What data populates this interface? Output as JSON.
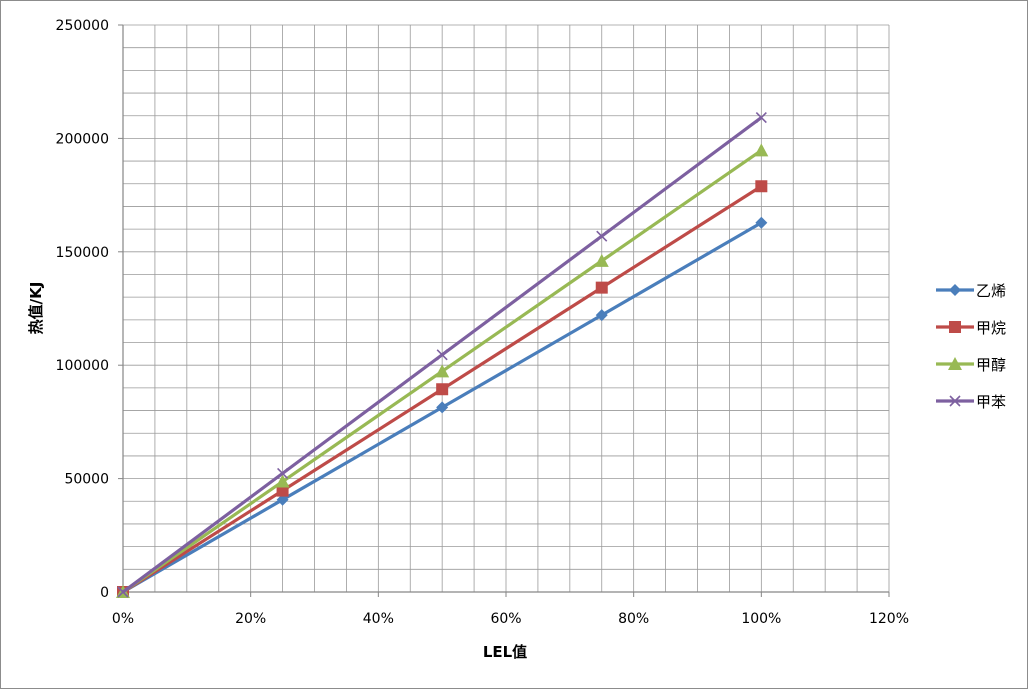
{
  "chart_data": {
    "type": "line",
    "title": "",
    "xlabel": "LEL值",
    "ylabel": "热值/KJ",
    "x": [
      0,
      0.25,
      0.5,
      0.75,
      1.0
    ],
    "xlim": [
      0,
      1.2
    ],
    "ylim": [
      0,
      250000
    ],
    "x_ticks": [
      0,
      0.2,
      0.4,
      0.6,
      0.8,
      1.0,
      1.2
    ],
    "x_tick_labels": [
      "0%",
      "20%",
      "40%",
      "60%",
      "80%",
      "100%",
      "120%"
    ],
    "y_ticks": [
      0,
      50000,
      100000,
      150000,
      200000,
      250000
    ],
    "y_tick_labels": [
      "0",
      "50000",
      "100000",
      "150000",
      "200000",
      "250000"
    ],
    "grid": true,
    "legend_position": "right",
    "series": [
      {
        "name": "乙烯",
        "color": "#4a7ebb",
        "marker": "diamond",
        "values": [
          0,
          40700,
          81400,
          122100,
          162800
        ]
      },
      {
        "name": "甲烷",
        "color": "#be4b48",
        "marker": "square",
        "values": [
          0,
          44700,
          89400,
          134200,
          178900
        ]
      },
      {
        "name": "甲醇",
        "color": "#98b954",
        "marker": "triangle",
        "values": [
          0,
          48700,
          97300,
          146000,
          194700
        ]
      },
      {
        "name": "甲苯",
        "color": "#7d60a0",
        "marker": "x",
        "values": [
          0,
          52300,
          104600,
          156900,
          209200
        ]
      }
    ]
  }
}
